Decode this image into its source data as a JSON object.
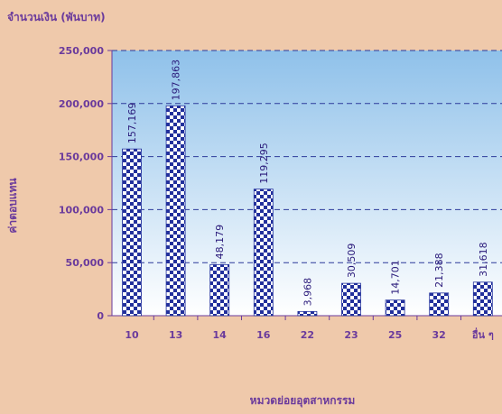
{
  "chart_data": {
    "type": "bar",
    "unit_label": "จำนวนเงิน (พันบาท)",
    "ylabel": "ค่าตอบแทน",
    "xlabel": "หมวดย่อยอุตสาหกรรม",
    "categories": [
      "10",
      "13",
      "14",
      "16",
      "22",
      "23",
      "25",
      "32",
      "อื่น ๆ"
    ],
    "values": [
      157169,
      197863,
      48179,
      119295,
      3968,
      30509,
      14701,
      21388,
      31618
    ],
    "value_labels": [
      "157,169",
      "197,863",
      "48,179",
      "119,295",
      "3,968",
      "30,509",
      "14,701",
      "21,388",
      "31,618"
    ],
    "ylim": [
      0,
      250000
    ],
    "yticks": [
      0,
      50000,
      100000,
      150000,
      200000,
      250000
    ],
    "ytick_labels": [
      "0",
      "50,000",
      "100,000",
      "150,000",
      "200,000",
      "250,000"
    ],
    "grid": true,
    "legend": "none"
  },
  "colors": {
    "page_background": "#efc9ab",
    "plot_gradient_top": "#8fc1ea",
    "plot_gradient_bottom": "#ffffff",
    "bar_check_dark": "#22309c",
    "bar_check_light": "#ffffff",
    "text": "#6a3a9c",
    "grid": "#2c3a9a"
  }
}
